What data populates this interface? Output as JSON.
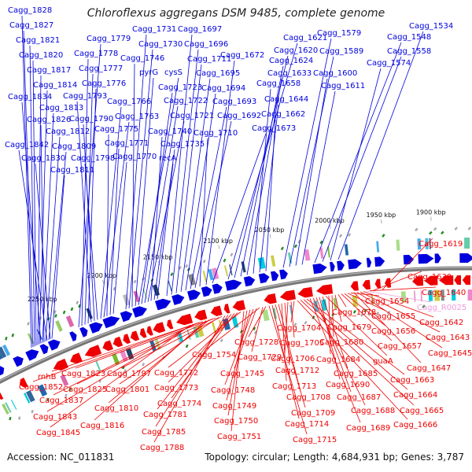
{
  "title": "Chloroflexus aggregans DSM 9485, complete genome",
  "footer": {
    "accession": "Accession: NC_011831",
    "summary": "Topology: circular; Length: 4,684,931 bp; Genes: 3,787"
  },
  "colors": {
    "forward": "#0000dd",
    "reverse": "#ee0000",
    "rna": "#ee99dd",
    "backbone": "#888888",
    "pseudo": "#228b22"
  },
  "kbp_ticks": [
    {
      "label": "1900 kbp"
    },
    {
      "label": "1950 kbp"
    },
    {
      "label": "2000 kbp"
    },
    {
      "label": "2050 kbp"
    },
    {
      "label": "2100 kbp"
    },
    {
      "label": "2150 kbp"
    },
    {
      "label": "2200 kbp"
    },
    {
      "label": "2250 kbp"
    }
  ],
  "forward_genes": [
    {
      "label": "Cagg_1828"
    },
    {
      "label": "Cagg_1827"
    },
    {
      "label": "Cagg_1821"
    },
    {
      "label": "Cagg_1820"
    },
    {
      "label": "Cagg_1817"
    },
    {
      "label": "Cagg_1814"
    },
    {
      "label": "Cagg_1834"
    },
    {
      "label": "Cagg_1813"
    },
    {
      "label": "Cagg_1826"
    },
    {
      "label": "Cagg_1812"
    },
    {
      "label": "Cagg_1842"
    },
    {
      "label": "Cagg_1809"
    },
    {
      "label": "Cagg_1830"
    },
    {
      "label": "Cagg_1811"
    },
    {
      "label": "Cagg_1779"
    },
    {
      "label": "Cagg_1778"
    },
    {
      "label": "Cagg_1777"
    },
    {
      "label": "Cagg_1776"
    },
    {
      "label": "Cagg_1793"
    },
    {
      "label": "Cagg_1790"
    },
    {
      "label": "Cagg_1798"
    },
    {
      "label": "Cagg_1766"
    },
    {
      "label": "Cagg_1763"
    },
    {
      "label": "Cagg_1775"
    },
    {
      "label": "Cagg_1771"
    },
    {
      "label": "Cagg_1770"
    },
    {
      "label": "Cagg_1731"
    },
    {
      "label": "Cagg_1730"
    },
    {
      "label": "Cagg_1746"
    },
    {
      "label": "pyrG"
    },
    {
      "label": "cysS"
    },
    {
      "label": "Cagg_1723"
    },
    {
      "label": "Cagg_1722"
    },
    {
      "label": "Cagg_1721"
    },
    {
      "label": "Cagg_1740"
    },
    {
      "label": "Cagg_1735"
    },
    {
      "label": "recA"
    },
    {
      "label": "Cagg_1697"
    },
    {
      "label": "Cagg_1696"
    },
    {
      "label": "Cagg_1711"
    },
    {
      "label": "Cagg_1695"
    },
    {
      "label": "Cagg_1694"
    },
    {
      "label": "Cagg_1693"
    },
    {
      "label": "Cagg_1692"
    },
    {
      "label": "Cagg_1710"
    },
    {
      "label": "Cagg_1672"
    },
    {
      "label": "Cagg_1673"
    },
    {
      "label": "Cagg_1621"
    },
    {
      "label": "Cagg_1620"
    },
    {
      "label": "Cagg_1624"
    },
    {
      "label": "Cagg_1633"
    },
    {
      "label": "Cagg_1658"
    },
    {
      "label": "Cagg_1644"
    },
    {
      "label": "Cagg_1662"
    },
    {
      "label": "Cagg_1579"
    },
    {
      "label": "Cagg_1589"
    },
    {
      "label": "Cagg_1600"
    },
    {
      "label": "Cagg_1611"
    },
    {
      "label": "Cagg_1548"
    },
    {
      "label": "Cagg_1558"
    },
    {
      "label": "Cagg_1574"
    },
    {
      "label": "Cagg_1534"
    }
  ],
  "reverse_genes": [
    {
      "label": "Cagg_1619"
    },
    {
      "label": "Cagg_1639"
    },
    {
      "label": "Cagg_1640"
    },
    {
      "label": "Cagg_R0025"
    },
    {
      "label": "Cagg_1642"
    },
    {
      "label": "Cagg_1643"
    },
    {
      "label": "Cagg_1645"
    },
    {
      "label": "Cagg_1647"
    },
    {
      "label": "Cagg_1654"
    },
    {
      "label": "Cagg_1655"
    },
    {
      "label": "Cagg_1656"
    },
    {
      "label": "Cagg_1657"
    },
    {
      "label": "Cagg_1678"
    },
    {
      "label": "Cagg_1679"
    },
    {
      "label": "Cagg_1680"
    },
    {
      "label": "Cagg_1684"
    },
    {
      "label": "guaA"
    },
    {
      "label": "Cagg_1685"
    },
    {
      "label": "Cagg_1690"
    },
    {
      "label": "Cagg_1687"
    },
    {
      "label": "Cagg_1688"
    },
    {
      "label": "Cagg_1689"
    },
    {
      "label": "Cagg_1663"
    },
    {
      "label": "Cagg_1664"
    },
    {
      "label": "Cagg_1665"
    },
    {
      "label": "Cagg_1666"
    },
    {
      "label": "Cagg_1704"
    },
    {
      "label": "Cagg_1705"
    },
    {
      "label": "Cagg_1706"
    },
    {
      "label": "Cagg_1712"
    },
    {
      "label": "Cagg_1713"
    },
    {
      "label": "Cagg_1708"
    },
    {
      "label": "Cagg_1709"
    },
    {
      "label": "Cagg_1714"
    },
    {
      "label": "Cagg_1715"
    },
    {
      "label": "Cagg_1728"
    },
    {
      "label": "Cagg_1729"
    },
    {
      "label": "Cagg_1754"
    },
    {
      "label": "Cagg_1745"
    },
    {
      "label": "Cagg_1748"
    },
    {
      "label": "Cagg_1749"
    },
    {
      "label": "Cagg_1750"
    },
    {
      "label": "Cagg_1751"
    },
    {
      "label": "Cagg_1772"
    },
    {
      "label": "Cagg_1773"
    },
    {
      "label": "Cagg_1774"
    },
    {
      "label": "Cagg_1781"
    },
    {
      "label": "Cagg_1785"
    },
    {
      "label": "Cagg_1788"
    },
    {
      "label": "Cagg_1797"
    },
    {
      "label": "Cagg_1801"
    },
    {
      "label": "Cagg_1823"
    },
    {
      "label": "Cagg_1825"
    },
    {
      "label": "Cagg_1810"
    },
    {
      "label": "Cagg_1816"
    },
    {
      "label": "rnhB"
    },
    {
      "label": "Cagg_1852"
    },
    {
      "label": "Cagg_1837"
    },
    {
      "label": "Cagg_1843"
    },
    {
      "label": "Cagg_1845"
    }
  ]
}
